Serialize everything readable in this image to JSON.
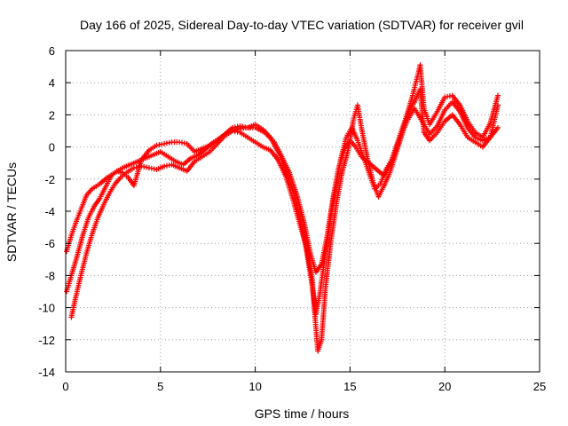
{
  "chart_data": {
    "type": "scatter",
    "title": "Day 166 of 2025, Sidereal Day-to-day VTEC variation (SDTVAR) for receiver gvil",
    "xlabel": "GPS time / hours",
    "ylabel": "SDTVAR / TECUs",
    "xlim": [
      0,
      25
    ],
    "ylim": [
      -14,
      6
    ],
    "xticks": [
      0,
      5,
      10,
      15,
      20,
      25
    ],
    "yticks": [
      -14,
      -12,
      -10,
      -8,
      -6,
      -4,
      -2,
      0,
      2,
      4,
      6
    ],
    "grid": true,
    "marker": "plus",
    "color": "#ff0000",
    "series": [
      {
        "values": [
          [
            0.05,
            -6.5
          ],
          [
            0.3,
            -5.5
          ],
          [
            0.6,
            -4.5
          ],
          [
            0.9,
            -3.6
          ],
          [
            1.1,
            -3.0
          ],
          [
            1.4,
            -2.6
          ],
          [
            1.8,
            -2.3
          ],
          [
            2.2,
            -1.9
          ],
          [
            2.6,
            -1.6
          ],
          [
            3.0,
            -1.3
          ],
          [
            3.4,
            -1.1
          ],
          [
            3.8,
            -0.9
          ],
          [
            4.2,
            -0.7
          ],
          [
            4.6,
            -0.5
          ],
          [
            5.0,
            -0.3
          ],
          [
            5.4,
            -0.6
          ],
          [
            5.8,
            -0.9
          ],
          [
            6.2,
            -1.1
          ],
          [
            6.6,
            -0.7
          ],
          [
            7.0,
            -0.5
          ],
          [
            7.4,
            -0.1
          ],
          [
            7.8,
            0.3
          ],
          [
            8.2,
            0.6
          ],
          [
            8.6,
            0.9
          ],
          [
            9.0,
            1.1
          ],
          [
            9.5,
            1.2
          ],
          [
            10.0,
            1.2
          ],
          [
            10.5,
            0.9
          ],
          [
            11.0,
            0.3
          ],
          [
            11.4,
            -0.6
          ],
          [
            11.8,
            -1.6
          ],
          [
            12.2,
            -3.0
          ],
          [
            12.6,
            -4.8
          ],
          [
            12.9,
            -6.6
          ],
          [
            13.2,
            -7.8
          ],
          [
            13.5,
            -7.3
          ],
          [
            13.8,
            -5.5
          ],
          [
            14.1,
            -3.2
          ],
          [
            14.4,
            -1.3
          ],
          [
            14.7,
            -0.2
          ],
          [
            15.0,
            0.4
          ],
          [
            15.3,
            0.0
          ],
          [
            15.6,
            -0.6
          ],
          [
            16.0,
            -1.0
          ],
          [
            16.4,
            -1.4
          ],
          [
            16.8,
            -1.8
          ],
          [
            17.2,
            -0.9
          ],
          [
            17.6,
            0.4
          ],
          [
            18.0,
            1.6
          ],
          [
            18.4,
            2.4
          ],
          [
            18.8,
            1.6
          ],
          [
            19.2,
            0.8
          ],
          [
            19.6,
            1.3
          ],
          [
            20.0,
            2.3
          ],
          [
            20.4,
            2.8
          ],
          [
            20.8,
            2.2
          ],
          [
            21.2,
            1.2
          ],
          [
            21.6,
            0.6
          ],
          [
            22.0,
            0.4
          ],
          [
            22.4,
            0.6
          ],
          [
            22.8,
            1.2
          ]
        ]
      },
      {
        "values": [
          [
            0.05,
            -9.0
          ],
          [
            0.3,
            -8.0
          ],
          [
            0.6,
            -6.8
          ],
          [
            0.9,
            -5.5
          ],
          [
            1.2,
            -4.4
          ],
          [
            1.5,
            -3.7
          ],
          [
            1.8,
            -3.2
          ],
          [
            2.1,
            -2.5
          ],
          [
            2.4,
            -1.8
          ],
          [
            2.7,
            -1.5
          ],
          [
            3.0,
            -1.6
          ],
          [
            3.3,
            -1.9
          ],
          [
            3.6,
            -2.4
          ],
          [
            4.0,
            -0.8
          ],
          [
            4.4,
            -0.2
          ],
          [
            4.8,
            0.1
          ],
          [
            5.2,
            0.2
          ],
          [
            5.6,
            0.3
          ],
          [
            6.0,
            0.3
          ],
          [
            6.4,
            0.2
          ],
          [
            6.8,
            -0.3
          ],
          [
            7.2,
            -0.1
          ],
          [
            7.6,
            0.1
          ],
          [
            8.0,
            0.4
          ],
          [
            8.4,
            0.8
          ],
          [
            8.8,
            1.2
          ],
          [
            9.2,
            1.3
          ],
          [
            9.6,
            1.2
          ],
          [
            10.0,
            1.4
          ],
          [
            10.4,
            1.1
          ],
          [
            10.8,
            0.6
          ],
          [
            11.2,
            -0.3
          ],
          [
            11.6,
            -1.4
          ],
          [
            12.0,
            -2.8
          ],
          [
            12.4,
            -4.6
          ],
          [
            12.7,
            -6.4
          ],
          [
            13.0,
            -8.6
          ],
          [
            13.2,
            -10.4
          ],
          [
            13.4,
            -9.2
          ],
          [
            13.6,
            -7.5
          ],
          [
            13.9,
            -5.0
          ],
          [
            14.2,
            -2.8
          ],
          [
            14.5,
            -0.8
          ],
          [
            14.8,
            0.6
          ],
          [
            15.1,
            1.2
          ],
          [
            15.4,
            0.4
          ],
          [
            15.7,
            -0.6
          ],
          [
            16.0,
            -1.6
          ],
          [
            16.3,
            -2.6
          ],
          [
            16.6,
            -2.3
          ],
          [
            16.9,
            -1.4
          ],
          [
            17.2,
            -0.8
          ],
          [
            17.6,
            0.6
          ],
          [
            18.0,
            2.0
          ],
          [
            18.3,
            3.2
          ],
          [
            18.6,
            4.6
          ],
          [
            18.7,
            5.1
          ],
          [
            18.9,
            2.4
          ],
          [
            19.2,
            1.4
          ],
          [
            19.6,
            2.2
          ],
          [
            20.0,
            3.1
          ],
          [
            20.4,
            3.2
          ],
          [
            20.8,
            2.6
          ],
          [
            21.2,
            1.6
          ],
          [
            21.6,
            0.9
          ],
          [
            22.0,
            0.6
          ],
          [
            22.4,
            1.5
          ],
          [
            22.8,
            3.2
          ]
        ]
      },
      {
        "values": [
          [
            0.3,
            -10.6
          ],
          [
            0.5,
            -9.5
          ],
          [
            0.8,
            -8.0
          ],
          [
            1.1,
            -6.6
          ],
          [
            1.4,
            -5.4
          ],
          [
            1.7,
            -4.4
          ],
          [
            2.0,
            -3.6
          ],
          [
            2.3,
            -2.9
          ],
          [
            2.6,
            -2.3
          ],
          [
            2.9,
            -1.9
          ],
          [
            3.2,
            -1.6
          ],
          [
            3.6,
            -1.3
          ],
          [
            4.0,
            -1.2
          ],
          [
            4.4,
            -1.3
          ],
          [
            4.8,
            -1.4
          ],
          [
            5.2,
            -1.2
          ],
          [
            5.6,
            -1.1
          ],
          [
            6.0,
            -1.3
          ],
          [
            6.4,
            -1.5
          ],
          [
            6.8,
            -0.9
          ],
          [
            7.2,
            -0.6
          ],
          [
            7.6,
            -0.3
          ],
          [
            8.0,
            0.2
          ],
          [
            8.4,
            0.7
          ],
          [
            8.8,
            1.0
          ],
          [
            9.2,
            0.9
          ],
          [
            9.6,
            0.6
          ],
          [
            10.0,
            0.3
          ],
          [
            10.4,
            0.0
          ],
          [
            10.8,
            -0.2
          ],
          [
            11.2,
            -0.8
          ],
          [
            11.6,
            -1.8
          ],
          [
            12.0,
            -3.3
          ],
          [
            12.4,
            -5.0
          ],
          [
            12.7,
            -6.2
          ],
          [
            13.0,
            -8.2
          ],
          [
            13.2,
            -11.3
          ],
          [
            13.3,
            -12.7
          ],
          [
            13.5,
            -12.0
          ],
          [
            13.7,
            -8.8
          ],
          [
            14.0,
            -5.8
          ],
          [
            14.3,
            -3.4
          ],
          [
            14.6,
            -1.5
          ],
          [
            14.9,
            -0.2
          ],
          [
            15.2,
            1.8
          ],
          [
            15.4,
            2.6
          ],
          [
            15.6,
            1.2
          ],
          [
            15.9,
            -0.6
          ],
          [
            16.2,
            -2.1
          ],
          [
            16.5,
            -3.1
          ],
          [
            16.8,
            -2.4
          ],
          [
            17.1,
            -1.6
          ],
          [
            17.4,
            -0.5
          ],
          [
            17.8,
            1.0
          ],
          [
            18.1,
            2.2
          ],
          [
            18.4,
            2.8
          ],
          [
            18.7,
            3.6
          ],
          [
            18.9,
            0.9
          ],
          [
            19.2,
            0.4
          ],
          [
            19.6,
            0.9
          ],
          [
            20.0,
            1.6
          ],
          [
            20.4,
            2.0
          ],
          [
            20.8,
            1.4
          ],
          [
            21.2,
            0.6
          ],
          [
            21.6,
            0.3
          ],
          [
            22.0,
            0.0
          ],
          [
            22.4,
            0.6
          ],
          [
            22.8,
            2.6
          ]
        ]
      }
    ]
  }
}
